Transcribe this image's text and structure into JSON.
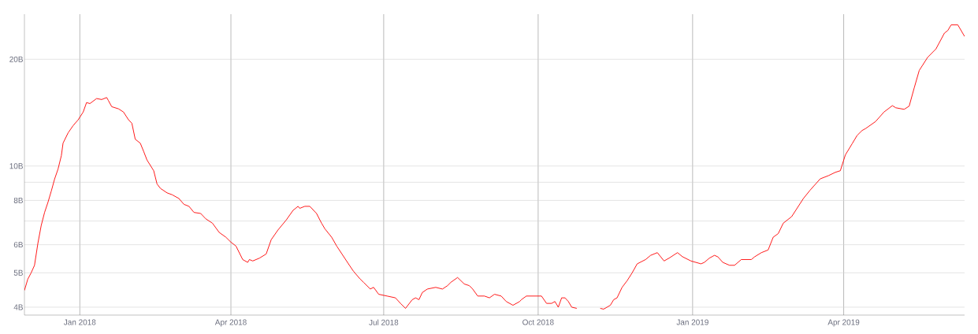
{
  "chart_data": {
    "type": "line",
    "color": "#ff0000",
    "log": "y",
    "grid": true,
    "xlim": [
      "2017-11-29",
      "2019-06-12"
    ],
    "ylim": [
      3.8,
      26.8
    ],
    "xticks": [
      {
        "value": "2018-01-01",
        "label": "Jan 2018"
      },
      {
        "value": "2018-04-01",
        "label": "Apr 2018"
      },
      {
        "value": "2018-07-01",
        "label": "Jul 2018"
      },
      {
        "value": "2018-10-01",
        "label": "Oct 2018"
      },
      {
        "value": "2019-01-01",
        "label": "Jan 2019"
      },
      {
        "value": "2019-04-01",
        "label": "Apr 2019"
      }
    ],
    "yticks": [
      {
        "value": 4,
        "label": "4B"
      },
      {
        "value": 5,
        "label": "5B"
      },
      {
        "value": 6,
        "label": "6B"
      },
      {
        "value": 7,
        "label": null
      },
      {
        "value": 8,
        "label": "8B"
      },
      {
        "value": 9,
        "label": null
      },
      {
        "value": 10,
        "label": "10B"
      },
      {
        "value": 20,
        "label": "20B"
      }
    ],
    "x": [
      "2017-11-29",
      "2017-12-01",
      "2017-12-03",
      "2017-12-05",
      "2017-12-07",
      "2017-12-09",
      "2017-12-11",
      "2017-12-13",
      "2017-12-15",
      "2017-12-17",
      "2017-12-19",
      "2017-12-21",
      "2017-12-22",
      "2017-12-25",
      "2017-12-28",
      "2017-12-31",
      "2018-01-03",
      "2018-01-05",
      "2018-01-07",
      "2018-01-11",
      "2018-01-14",
      "2018-01-17",
      "2018-01-18",
      "2018-01-20",
      "2018-01-24",
      "2018-01-27",
      "2018-01-30",
      "2018-02-01",
      "2018-02-03",
      "2018-02-06",
      "2018-02-08",
      "2018-02-10",
      "2018-02-14",
      "2018-02-16",
      "2018-02-18",
      "2018-02-22",
      "2018-02-25",
      "2018-03-01",
      "2018-03-04",
      "2018-03-07",
      "2018-03-10",
      "2018-03-14",
      "2018-03-17",
      "2018-03-21",
      "2018-03-25",
      "2018-03-29",
      "2018-04-01",
      "2018-04-04",
      "2018-04-08",
      "2018-04-11",
      "2018-04-12",
      "2018-04-14",
      "2018-04-18",
      "2018-04-22",
      "2018-04-25",
      "2018-04-29",
      "2018-05-04",
      "2018-05-08",
      "2018-05-11",
      "2018-05-12",
      "2018-05-15",
      "2018-05-18",
      "2018-05-22",
      "2018-05-25",
      "2018-05-27",
      "2018-05-31",
      "2018-06-03",
      "2018-06-10",
      "2018-06-13",
      "2018-06-17",
      "2018-06-19",
      "2018-06-23",
      "2018-06-25",
      "2018-06-28",
      "2018-07-03",
      "2018-07-08",
      "2018-07-11",
      "2018-07-14",
      "2018-07-18",
      "2018-07-20",
      "2018-07-22",
      "2018-07-24",
      "2018-07-27",
      "2018-08-01",
      "2018-08-05",
      "2018-08-08",
      "2018-08-10",
      "2018-08-14",
      "2018-08-18",
      "2018-08-21",
      "2018-08-23",
      "2018-08-26",
      "2018-08-30",
      "2018-09-02",
      "2018-09-05",
      "2018-09-09",
      "2018-09-12",
      "2018-09-16",
      "2018-09-20",
      "2018-09-21",
      "2018-09-24",
      "2018-09-28",
      "2018-10-03",
      "2018-10-06",
      "2018-10-09",
      "2018-10-11",
      "2018-10-13",
      "2018-10-15",
      "2018-10-17",
      "2018-10-19",
      "2018-10-21",
      "2018-10-24",
      "2018-10-27",
      "2018-11-02",
      "2018-11-07",
      "2018-11-09",
      "2018-11-13",
      "2018-11-15",
      "2018-11-17",
      "2018-11-20",
      "2018-11-23",
      "2018-11-26",
      "2018-11-29",
      "2018-12-04",
      "2018-12-07",
      "2018-12-11",
      "2018-12-15",
      "2018-12-18",
      "2018-12-23",
      "2018-12-26",
      "2018-12-31",
      "2019-01-06",
      "2019-01-08",
      "2019-01-11",
      "2019-01-14",
      "2019-01-16",
      "2019-01-19",
      "2019-01-23",
      "2019-01-26",
      "2019-01-30",
      "2019-02-05",
      "2019-02-07",
      "2019-02-11",
      "2019-02-15",
      "2019-02-18",
      "2019-02-21",
      "2019-02-24",
      "2019-03-01",
      "2019-03-08",
      "2019-03-12",
      "2019-03-18",
      "2019-03-23",
      "2019-03-27",
      "2019-03-30",
      "2019-04-02",
      "2019-04-06",
      "2019-04-09",
      "2019-04-12",
      "2019-04-14",
      "2019-04-20",
      "2019-04-25",
      "2019-04-30",
      "2019-05-02",
      "2019-05-07",
      "2019-05-10",
      "2019-05-13",
      "2019-05-16",
      "2019-05-21",
      "2019-05-26",
      "2019-05-31",
      "2019-06-02",
      "2019-06-04",
      "2019-06-08",
      "2019-06-12"
    ],
    "values": [
      4.46,
      4.8,
      5.0,
      5.25,
      6.05,
      6.8,
      7.4,
      7.9,
      8.5,
      9.2,
      9.8,
      10.7,
      11.6,
      12.4,
      13.0,
      13.5,
      14.2,
      15.1,
      15.0,
      15.5,
      15.4,
      15.6,
      15.3,
      14.7,
      14.5,
      14.2,
      13.5,
      13.2,
      11.9,
      11.6,
      11.0,
      10.4,
      9.7,
      8.9,
      8.65,
      8.4,
      8.3,
      8.1,
      7.8,
      7.7,
      7.4,
      7.35,
      7.1,
      6.9,
      6.5,
      6.3,
      6.1,
      5.95,
      5.45,
      5.35,
      5.45,
      5.4,
      5.5,
      5.65,
      6.2,
      6.6,
      7.05,
      7.5,
      7.7,
      7.6,
      7.7,
      7.7,
      7.35,
      6.9,
      6.65,
      6.3,
      5.95,
      5.3,
      5.05,
      4.8,
      4.7,
      4.5,
      4.55,
      4.35,
      4.3,
      4.25,
      4.1,
      3.97,
      4.2,
      4.25,
      4.2,
      4.4,
      4.5,
      4.55,
      4.5,
      4.6,
      4.7,
      4.85,
      4.65,
      4.6,
      4.5,
      4.3,
      4.3,
      4.25,
      4.35,
      4.3,
      4.15,
      4.05,
      4.15,
      4.2,
      4.3,
      4.3,
      4.3,
      4.1,
      4.1,
      4.15,
      4.0,
      4.25,
      4.25,
      4.15,
      4.0,
      3.97,
      null,
      null,
      3.97,
      3.95,
      4.05,
      4.2,
      4.25,
      4.55,
      4.75,
      5.0,
      5.3,
      5.45,
      5.6,
      5.7,
      5.4,
      5.5,
      5.7,
      5.55,
      5.4,
      5.3,
      5.35,
      5.5,
      5.6,
      5.55,
      5.35,
      5.25,
      5.25,
      5.45,
      5.45,
      5.55,
      5.7,
      5.8,
      6.3,
      6.45,
      6.9,
      7.2,
      8.1,
      8.55,
      9.2,
      9.4,
      9.6,
      9.7,
      10.75,
      11.55,
      12.2,
      12.6,
      12.75,
      13.35,
      14.2,
      14.8,
      14.6,
      14.45,
      14.75,
      16.6,
      18.6,
      20.25,
      21.4,
      23.7,
      24.1,
      25.0,
      25.0,
      23.2
    ]
  }
}
